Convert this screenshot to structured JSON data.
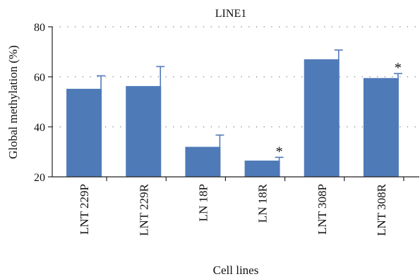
{
  "chart_data": {
    "type": "bar",
    "title": "LINE1",
    "xlabel": "Cell lines",
    "ylabel": "Global methylation (%)",
    "ylim": [
      20,
      80
    ],
    "yticks": [
      "20",
      "40",
      "60",
      "80"
    ],
    "grid": true,
    "categories": [
      "LNT 229P",
      "LNT 229R",
      "LN 18P",
      "LN 18R",
      "LNT 308P",
      "LNT 308R"
    ],
    "values": [
      55.2,
      56.3,
      32.0,
      26.5,
      67.0,
      59.5
    ],
    "errors": [
      5.2,
      7.8,
      4.7,
      1.3,
      3.7,
      1.8
    ],
    "annotations": [
      "",
      "",
      "",
      "*",
      "",
      "*"
    ],
    "bar_color": "#4f7ab8"
  }
}
